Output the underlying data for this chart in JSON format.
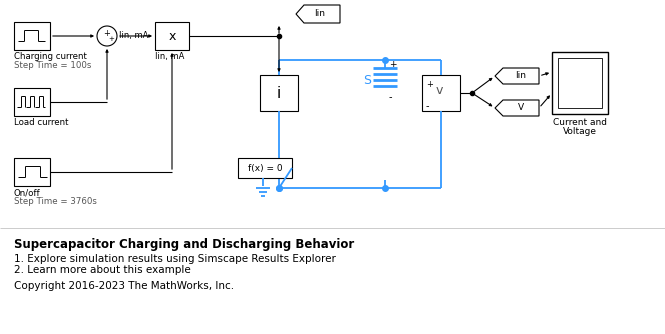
{
  "title": "Supercapacitor Charging and Discharging Behavior",
  "bullet1": "1. Explore simulation results using Simscape Results Explorer",
  "bullet2": "2. Learn more about this example",
  "copyright": "Copyright 2016-2023 The MathWorks, Inc.",
  "bg_color": "#ffffff",
  "block_edge": "#000000",
  "signal_color": "#3399ff",
  "text_color": "#000000",
  "label_color": "#555555"
}
